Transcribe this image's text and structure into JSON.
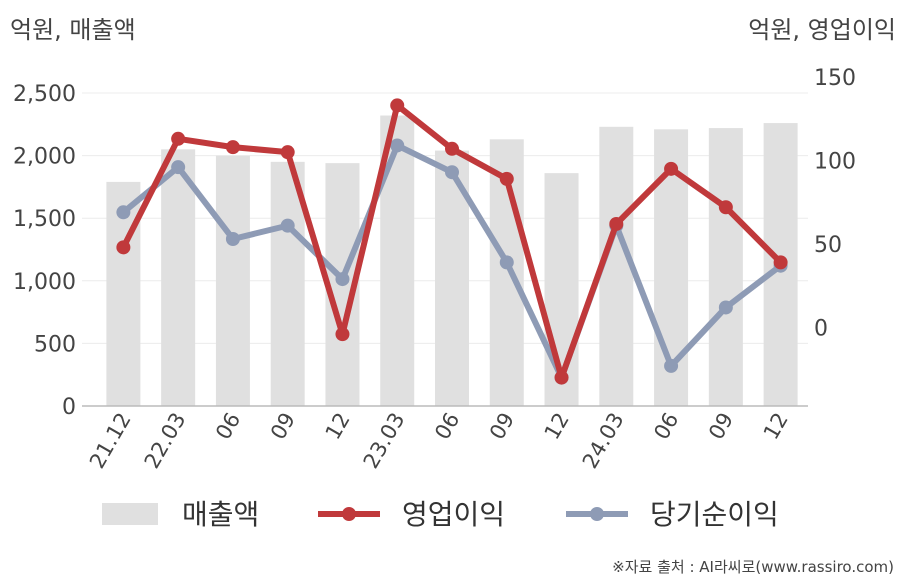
{
  "chart_data": {
    "type": "bar+line",
    "categories": [
      "21.12",
      "22.03",
      "06",
      "09",
      "12",
      "23.03",
      "06",
      "09",
      "12",
      "24.03",
      "06",
      "09",
      "12"
    ],
    "left_axis": {
      "unit_label": "억원, 매출액",
      "ticks": [
        "0",
        "500",
        "1,000",
        "1,500",
        "2,000",
        "2,500"
      ],
      "ylim": [
        0,
        2500
      ]
    },
    "right_axis": {
      "unit_label": "억원, 영업이익",
      "ticks": [
        "0",
        "50",
        "100",
        "150"
      ],
      "ylim": [
        -50,
        150
      ]
    },
    "series": [
      {
        "name": "매출액",
        "type": "bar",
        "axis": "left",
        "color": "#e0e0e0",
        "values": [
          1790,
          2050,
          2000,
          1950,
          1940,
          2320,
          2040,
          2130,
          1860,
          2230,
          2210,
          2220,
          2260
        ]
      },
      {
        "name": "영업이익",
        "type": "line",
        "axis": "right",
        "color": "#c0393b",
        "values": [
          48,
          113,
          108,
          105,
          -4,
          133,
          107,
          89,
          -30,
          62,
          95,
          72,
          39
        ]
      },
      {
        "name": "당기순이익",
        "type": "line",
        "axis": "right",
        "color": "#8e9bb5",
        "values": [
          69,
          96,
          53,
          61,
          29,
          109,
          93,
          39,
          -30,
          61,
          -23,
          12,
          37
        ]
      }
    ],
    "grid": true,
    "legend_position": "bottom"
  },
  "source_note": "※자료 출처 : AI라씨로(www.rassiro.com)"
}
